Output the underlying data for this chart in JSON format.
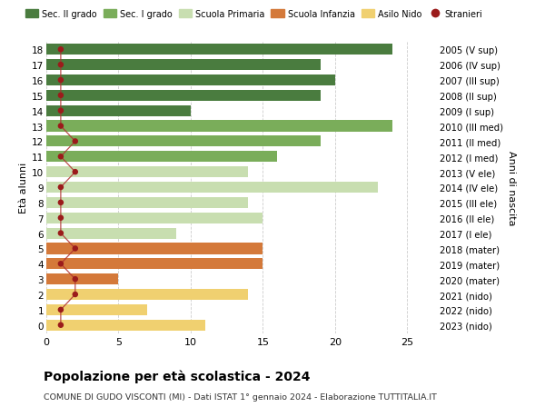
{
  "ages": [
    18,
    17,
    16,
    15,
    14,
    13,
    12,
    11,
    10,
    9,
    8,
    7,
    6,
    5,
    4,
    3,
    2,
    1,
    0
  ],
  "labels_right": [
    "2005 (V sup)",
    "2006 (IV sup)",
    "2007 (III sup)",
    "2008 (II sup)",
    "2009 (I sup)",
    "2010 (III med)",
    "2011 (II med)",
    "2012 (I med)",
    "2013 (V ele)",
    "2014 (IV ele)",
    "2015 (III ele)",
    "2016 (II ele)",
    "2017 (I ele)",
    "2018 (mater)",
    "2019 (mater)",
    "2020 (mater)",
    "2021 (nido)",
    "2022 (nido)",
    "2023 (nido)"
  ],
  "values": [
    24,
    19,
    20,
    19,
    10,
    24,
    19,
    16,
    14,
    23,
    14,
    15,
    9,
    15,
    15,
    5,
    14,
    7,
    11
  ],
  "stranieri": [
    1,
    1,
    1,
    1,
    1,
    1,
    2,
    1,
    2,
    1,
    1,
    1,
    1,
    2,
    1,
    2,
    2,
    1,
    1
  ],
  "bar_colors": [
    "#4a7c3f",
    "#4a7c3f",
    "#4a7c3f",
    "#4a7c3f",
    "#4a7c3f",
    "#7aad5a",
    "#7aad5a",
    "#7aad5a",
    "#c8deb0",
    "#c8deb0",
    "#c8deb0",
    "#c8deb0",
    "#c8deb0",
    "#d4793a",
    "#d4793a",
    "#d4793a",
    "#f0d070",
    "#f0d070",
    "#f0d070"
  ],
  "stranieri_color": "#9b1b1b",
  "stranieri_line_color": "#b03030",
  "legend_labels": [
    "Sec. II grado",
    "Sec. I grado",
    "Scuola Primaria",
    "Scuola Infanzia",
    "Asilo Nido",
    "Stranieri"
  ],
  "legend_colors_list": [
    "#4a7c3f",
    "#7aad5a",
    "#c8deb0",
    "#d4793a",
    "#f0d070",
    "#9b1b1b"
  ],
  "title": "Popolazione per à scolastica - 2024",
  "title_bold": "Popolazione per età scolastica - 2024",
  "subtitle": "COMUNE DI GUDO VISCONTI (MI) - Dati ISTAT 1° gennaio 2024 - Elaborazione TUTTITALIA.IT",
  "ylabel": "Età alunni",
  "ylabel_right": "Anni di nascita",
  "xlim": [
    0,
    27
  ],
  "ylim_min": -0.55,
  "ylim_max": 18.55,
  "background_color": "#ffffff",
  "bar_height": 0.72,
  "grid_color": "#cccccc"
}
